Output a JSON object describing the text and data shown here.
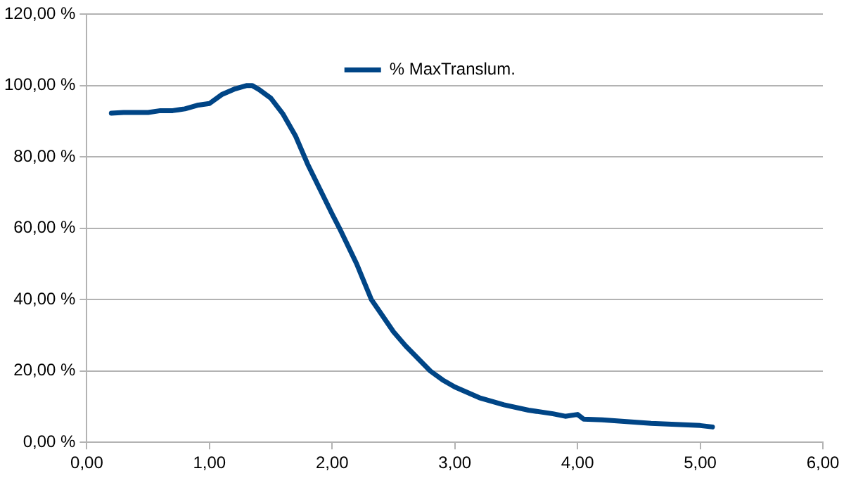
{
  "chart_data": {
    "type": "line",
    "x": [
      0.2,
      0.3,
      0.4,
      0.5,
      0.6,
      0.7,
      0.8,
      0.9,
      1.0,
      1.1,
      1.2,
      1.3,
      1.35,
      1.4,
      1.5,
      1.6,
      1.7,
      1.8,
      1.9,
      2.0,
      2.06,
      2.2,
      2.32,
      2.4,
      2.5,
      2.6,
      2.7,
      2.8,
      2.9,
      3.0,
      3.2,
      3.4,
      3.6,
      3.8,
      3.9,
      4.0,
      4.05,
      4.2,
      4.4,
      4.6,
      4.8,
      5.0,
      5.1
    ],
    "series": [
      {
        "name": "% MaxTranslum.",
        "color": "#004586",
        "values": [
          92.3,
          92.5,
          92.5,
          92.5,
          93,
          93,
          93.5,
          94.5,
          95,
          97.5,
          99,
          100,
          100,
          99,
          96.5,
          92,
          86,
          78,
          71,
          64,
          60,
          50,
          40,
          36,
          31,
          27,
          23.5,
          20,
          17.5,
          15.5,
          12.5,
          10.5,
          9,
          8,
          7.3,
          7.8,
          6.5,
          6.3,
          5.8,
          5.3,
          5,
          4.7,
          4.3
        ]
      }
    ],
    "xlim": [
      0,
      6
    ],
    "xticks": [
      {
        "value": 0,
        "label": "0,00"
      },
      {
        "value": 1,
        "label": "1,00"
      },
      {
        "value": 2,
        "label": "2,00"
      },
      {
        "value": 3,
        "label": "3,00"
      },
      {
        "value": 4,
        "label": "4,00"
      },
      {
        "value": 5,
        "label": "5,00"
      },
      {
        "value": 6,
        "label": "6,00"
      }
    ],
    "ylim": [
      0,
      120
    ],
    "yticks": [
      {
        "value": 0,
        "label": "0,00 %"
      },
      {
        "value": 20,
        "label": "20,00 %"
      },
      {
        "value": 40,
        "label": "40,00 %"
      },
      {
        "value": 60,
        "label": "60,00 %"
      },
      {
        "value": 80,
        "label": "80,00 %"
      },
      {
        "value": 100,
        "label": "100,00 %"
      },
      {
        "value": 120,
        "label": "120,00 %"
      }
    ],
    "grid": "y",
    "legend": "top",
    "marker": "none",
    "line_style": "solid"
  }
}
